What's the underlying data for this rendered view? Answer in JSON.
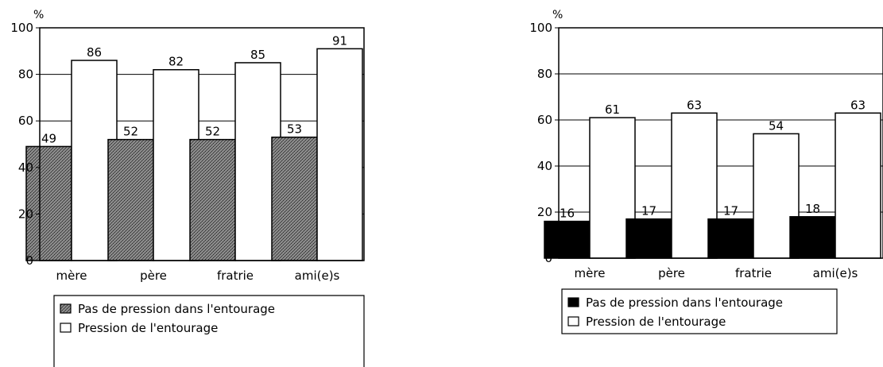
{
  "chart_data": [
    {
      "type": "bar",
      "title": "",
      "xlabel": "",
      "ylabel": "%",
      "ylim": [
        0,
        100
      ],
      "yticks": [
        0,
        20,
        40,
        60,
        80,
        100
      ],
      "grid": true,
      "legend_position": "bottom",
      "categories": [
        "mère",
        "père",
        "fratrie",
        "ami(e)s"
      ],
      "series": [
        {
          "name": "Pas de pression dans l'entourage",
          "values": [
            49,
            52,
            52,
            53
          ],
          "color": "#6e6e6e"
        },
        {
          "name": "Pression de l'entourage",
          "values": [
            86,
            82,
            85,
            91
          ],
          "color": "#ffffff"
        }
      ]
    },
    {
      "type": "bar",
      "title": "",
      "xlabel": "",
      "ylabel": "%",
      "ylim": [
        0,
        100
      ],
      "yticks": [
        0,
        20,
        40,
        60,
        80,
        100
      ],
      "grid": true,
      "legend_position": "bottom",
      "categories": [
        "mère",
        "père",
        "fratrie",
        "ami(e)s"
      ],
      "series": [
        {
          "name": "Pas de pression dans l'entourage",
          "values": [
            16,
            17,
            17,
            18
          ],
          "color": "#000000"
        },
        {
          "name": "Pression de l'entourage",
          "values": [
            61,
            63,
            54,
            63
          ],
          "color": "#ffffff"
        }
      ]
    }
  ]
}
